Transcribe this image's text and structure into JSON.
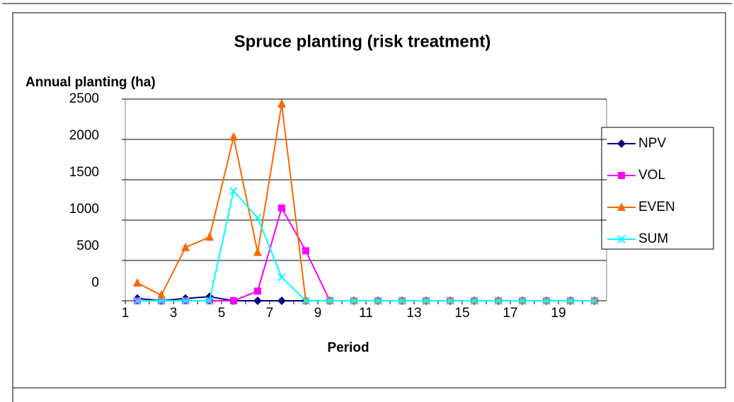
{
  "chart_data": {
    "type": "line",
    "title": "Spruce planting (risk treatment)",
    "y_label": "Annual planting (ha)",
    "x_label": "Period",
    "categories": [
      "1",
      null,
      "3",
      null,
      "5",
      null,
      "7",
      null,
      "9",
      null,
      "11",
      null,
      "13",
      null,
      "15",
      null,
      "17",
      null,
      "19",
      null
    ],
    "ylim": [
      0,
      2500
    ],
    "yticks": [
      0,
      500,
      1000,
      1500,
      2000,
      2500
    ],
    "grid": true,
    "legend": "right",
    "series": [
      {
        "name": "NPV",
        "color": "#000080",
        "marker": "diamond",
        "values": [
          30,
          0,
          30,
          50,
          0,
          0,
          0,
          0,
          0,
          0,
          0,
          0,
          0,
          0,
          0,
          0,
          0,
          0,
          0,
          0
        ]
      },
      {
        "name": "VOL",
        "color": "#ff00ff",
        "marker": "square",
        "values": [
          0,
          0,
          0,
          0,
          0,
          120,
          1150,
          620,
          0,
          0,
          0,
          0,
          0,
          0,
          0,
          0,
          0,
          0,
          0,
          0
        ]
      },
      {
        "name": "EVEN",
        "color": "#ff6600",
        "marker": "triangle",
        "values": [
          220,
          70,
          660,
          790,
          2030,
          600,
          2440,
          0,
          0,
          0,
          0,
          0,
          0,
          0,
          0,
          0,
          0,
          0,
          0,
          0
        ]
      },
      {
        "name": "SUM",
        "color": "#00ffff",
        "marker": "x",
        "values": [
          0,
          0,
          0,
          0,
          1360,
          1030,
          290,
          0,
          0,
          0,
          0,
          0,
          0,
          0,
          0,
          0,
          0,
          0,
          0,
          0
        ]
      }
    ]
  }
}
